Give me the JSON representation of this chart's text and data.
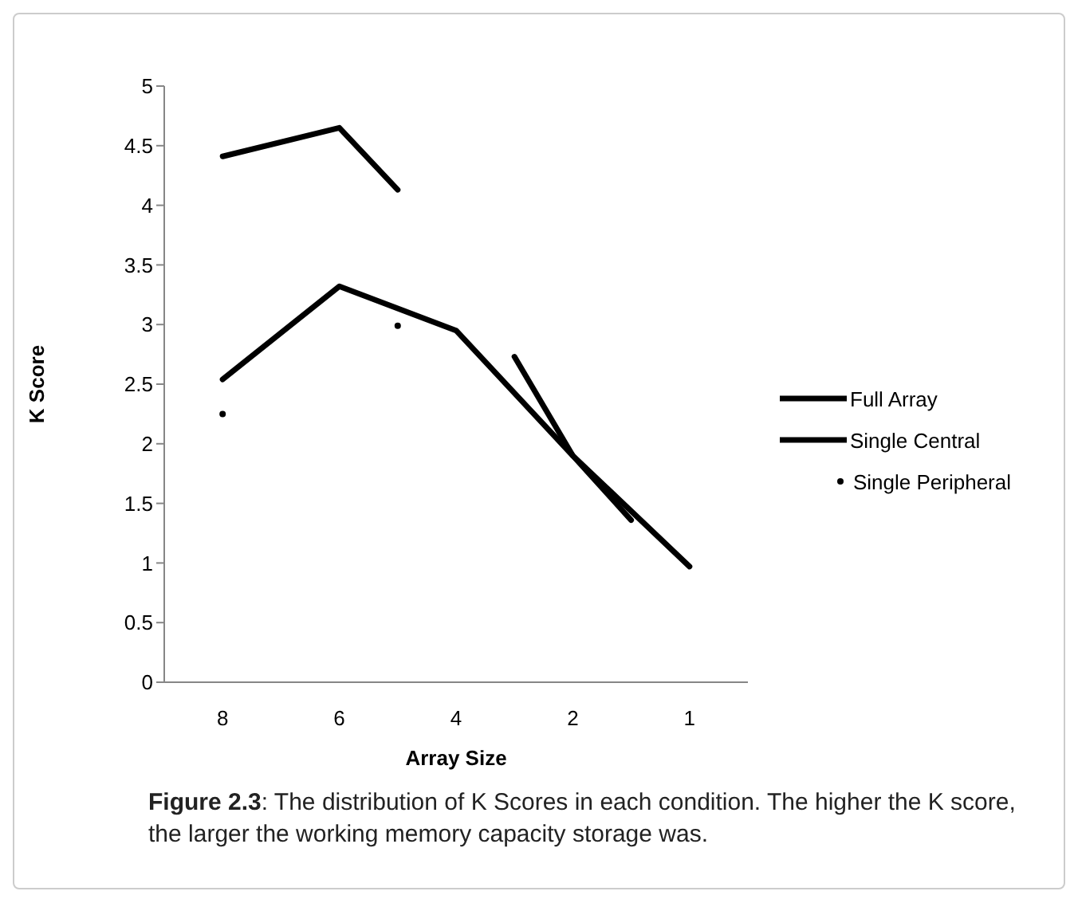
{
  "chart_data": {
    "type": "line",
    "xlabel": "Array Size",
    "ylabel": "K Score",
    "categories": [
      "8",
      null,
      "6",
      null,
      "4",
      null,
      "2",
      null,
      "1"
    ],
    "ylim": [
      0,
      5
    ],
    "yticks": [
      0,
      0.5,
      1,
      1.5,
      2,
      2.5,
      3,
      3.5,
      4,
      4.5,
      5
    ],
    "grid": false,
    "legend": "right",
    "marker": "none",
    "line_style": "solid",
    "series": [
      {
        "name": "Full Array",
        "color": "#000000",
        "values": [
          4.41,
          null,
          4.65,
          4.13,
          null,
          null,
          null,
          null,
          null
        ]
      },
      {
        "color": "#000000",
        "values": [
          null,
          null,
          null,
          null,
          null,
          2.73,
          1.9,
          1.36,
          null
        ]
      },
      {
        "name": "Single Central",
        "color": "#000000",
        "values": [
          2.54,
          null,
          3.32,
          null,
          2.95,
          null,
          1.9,
          null,
          0.97
        ]
      },
      {
        "name": "Single Peripheral",
        "type": "scatter",
        "color": "#000000",
        "marker": "circle",
        "values": [
          2.25,
          null,
          null,
          2.99,
          null,
          null,
          null,
          null,
          null
        ]
      }
    ],
    "annotations": [
      "Figure 2.3: The distribution of K Scores in each condition. The higher the K score, the larger the working memory capacity storage was."
    ]
  }
}
